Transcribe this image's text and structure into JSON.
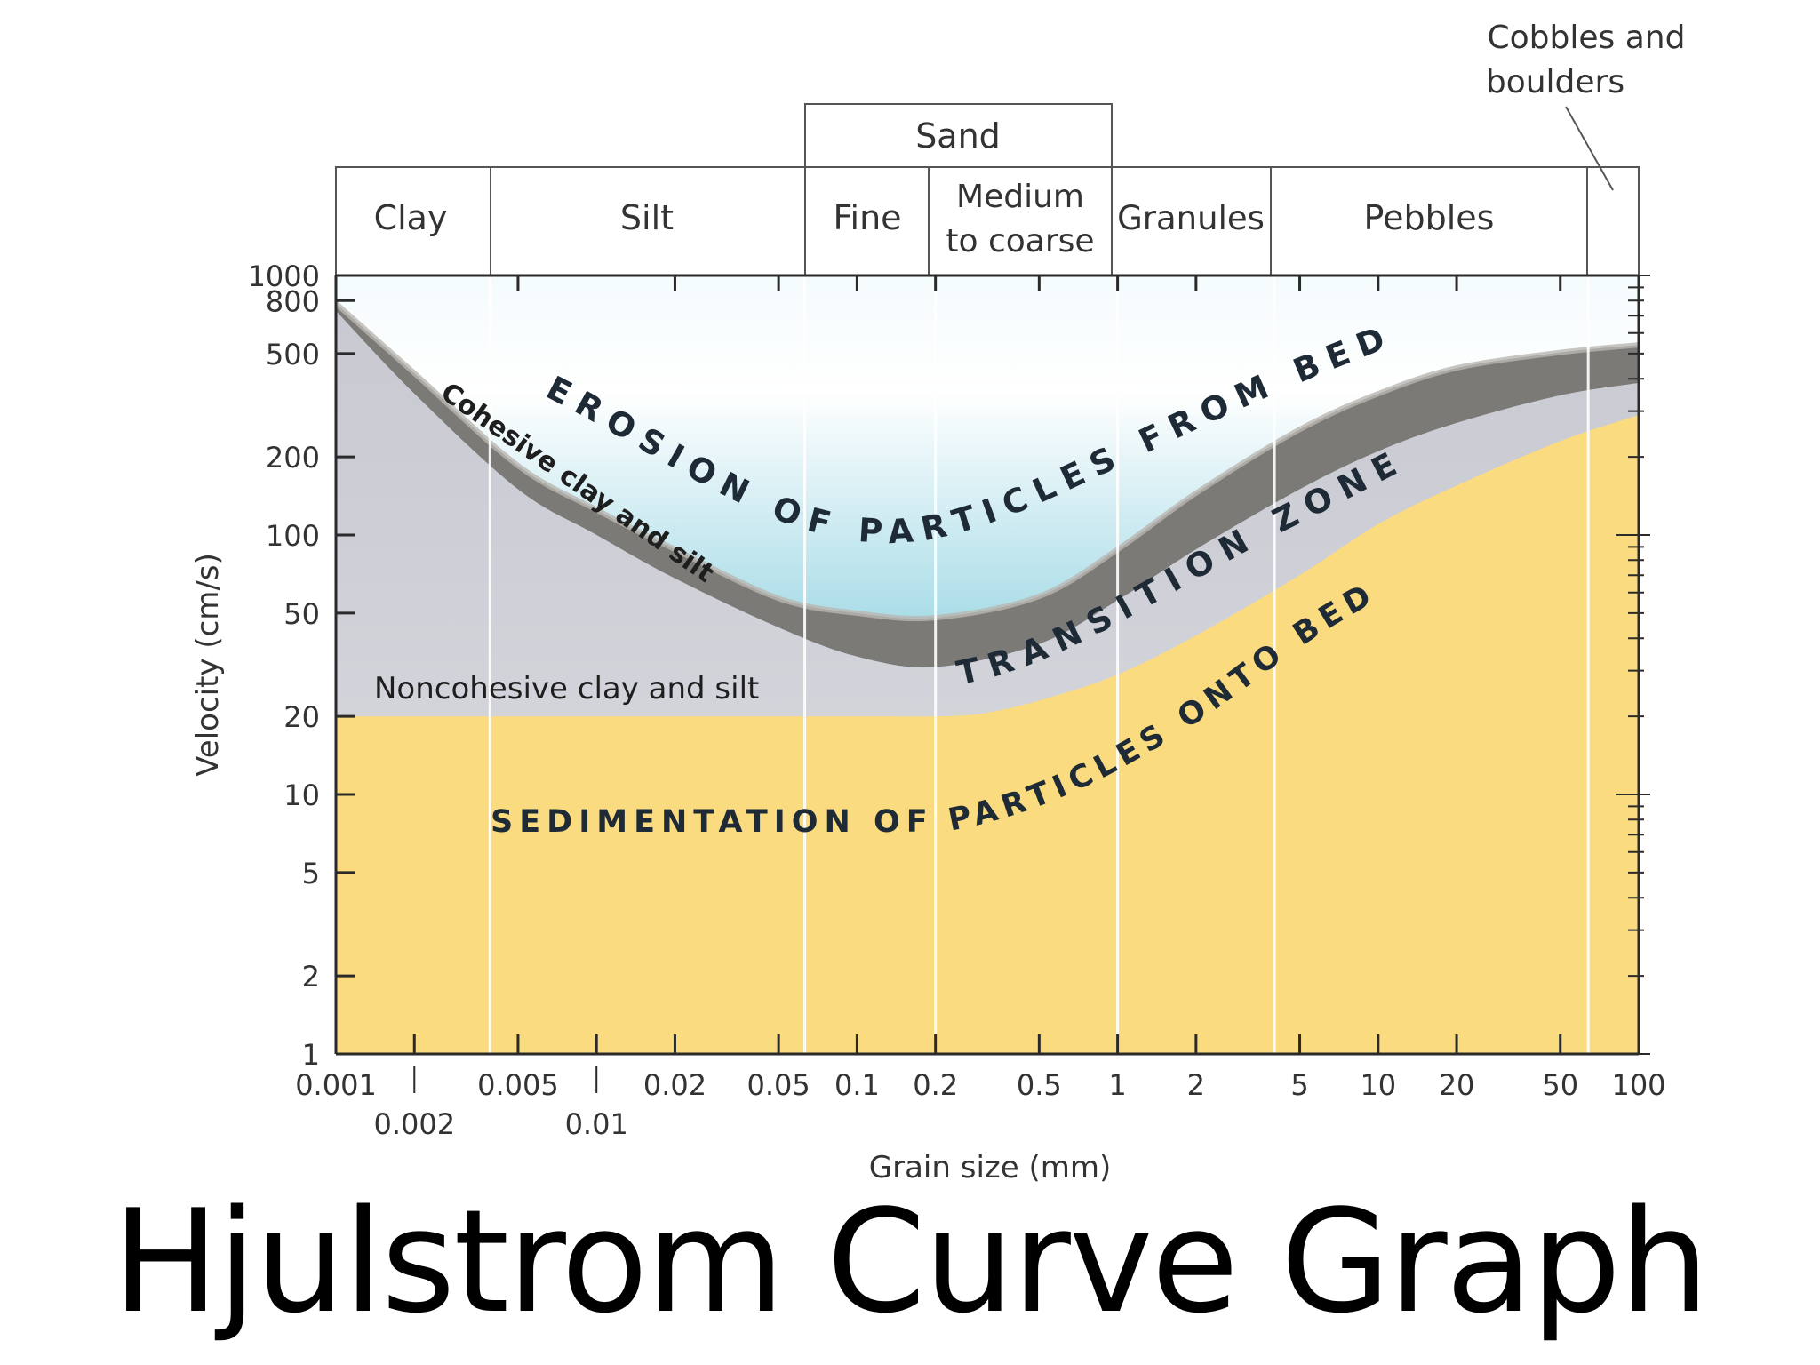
{
  "page": {
    "title": "Hjulstrom Curve Graph"
  },
  "chart_data": {
    "type": "area",
    "xlabel": "Grain size (mm)",
    "ylabel": "Velocity (cm/s)",
    "xscale": "log",
    "yscale": "log",
    "xlim": [
      0.001,
      100
    ],
    "ylim": [
      1,
      1000
    ],
    "x_ticks_primary": [
      {
        "value": 0.001,
        "label": "0.001"
      },
      {
        "value": 0.005,
        "label": "0.005"
      },
      {
        "value": 0.02,
        "label": "0.02"
      },
      {
        "value": 0.05,
        "label": "0.05"
      },
      {
        "value": 0.1,
        "label": "0.1"
      },
      {
        "value": 0.2,
        "label": "0.2"
      },
      {
        "value": 0.5,
        "label": "0.5"
      },
      {
        "value": 1,
        "label": "1"
      },
      {
        "value": 2,
        "label": "2"
      },
      {
        "value": 5,
        "label": "5"
      },
      {
        "value": 10,
        "label": "10"
      },
      {
        "value": 20,
        "label": "20"
      },
      {
        "value": 50,
        "label": "50"
      },
      {
        "value": 100,
        "label": "100"
      }
    ],
    "x_ticks_secondary": [
      {
        "value": 0.002,
        "label": "0.002"
      },
      {
        "value": 0.01,
        "label": "0.01"
      }
    ],
    "y_ticks": [
      {
        "value": 1000,
        "label": "1000"
      },
      {
        "value": 800,
        "label": "800"
      },
      {
        "value": 500,
        "label": "500"
      },
      {
        "value": 200,
        "label": "200"
      },
      {
        "value": 100,
        "label": "100"
      },
      {
        "value": 50,
        "label": "50"
      },
      {
        "value": 20,
        "label": "20"
      },
      {
        "value": 10,
        "label": "10"
      },
      {
        "value": 5,
        "label": "5"
      },
      {
        "value": 2,
        "label": "2"
      },
      {
        "value": 1,
        "label": "1"
      }
    ],
    "size_classes": [
      {
        "name": "Clay",
        "from": 0.001,
        "to": 0.0039
      },
      {
        "name": "Silt",
        "from": 0.0039,
        "to": 0.063
      },
      {
        "name": "Fine",
        "from": 0.063,
        "to": 0.2
      },
      {
        "name": "Medium to coarse",
        "from": 0.2,
        "to": 1
      },
      {
        "name": "Granules",
        "from": 1,
        "to": 4
      },
      {
        "name": "Pebbles",
        "from": 4,
        "to": 64
      },
      {
        "name": "Cobbles and boulders",
        "from": 64,
        "to": 100
      }
    ],
    "sand_group": {
      "name": "Sand",
      "from": 0.063,
      "to": 1
    },
    "header_labels": {
      "clay": "Clay",
      "silt": "Silt",
      "fine": "Fine",
      "medium_1": "Medium",
      "medium_2": "to coarse",
      "granules": "Granules",
      "pebbles": "Pebbles",
      "sand": "Sand",
      "cobbles_1": "Cobbles and",
      "cobbles_2": "boulders"
    },
    "series": [
      {
        "name": "Erosion curve (upper)",
        "points": [
          [
            0.001,
            780
          ],
          [
            0.002,
            420
          ],
          [
            0.005,
            185
          ],
          [
            0.01,
            125
          ],
          [
            0.02,
            88
          ],
          [
            0.05,
            57
          ],
          [
            0.1,
            50
          ],
          [
            0.2,
            48
          ],
          [
            0.5,
            58
          ],
          [
            1,
            88
          ],
          [
            2,
            145
          ],
          [
            5,
            255
          ],
          [
            10,
            350
          ],
          [
            20,
            440
          ],
          [
            50,
            505
          ],
          [
            100,
            540
          ]
        ]
      },
      {
        "name": "Erosion curve (lower)",
        "points": [
          [
            0.001,
            730
          ],
          [
            0.002,
            350
          ],
          [
            0.005,
            150
          ],
          [
            0.01,
            100
          ],
          [
            0.02,
            68
          ],
          [
            0.05,
            44
          ],
          [
            0.1,
            34
          ],
          [
            0.2,
            31
          ],
          [
            0.5,
            38
          ],
          [
            1,
            56
          ],
          [
            2,
            88
          ],
          [
            5,
            150
          ],
          [
            10,
            210
          ],
          [
            20,
            270
          ],
          [
            50,
            345
          ],
          [
            100,
            385
          ]
        ]
      },
      {
        "name": "Settling velocity curve",
        "points": [
          [
            0.001,
            20
          ],
          [
            0.01,
            20
          ],
          [
            0.1,
            20
          ],
          [
            0.2,
            20
          ],
          [
            0.3,
            20.5
          ],
          [
            0.5,
            23
          ],
          [
            1,
            29
          ],
          [
            2,
            41
          ],
          [
            5,
            70
          ],
          [
            10,
            110
          ],
          [
            20,
            155
          ],
          [
            50,
            230
          ],
          [
            100,
            290
          ]
        ]
      }
    ],
    "regions": {
      "erosion": "EROSION OF PARTICLES FROM BED",
      "transition": "TRANSITION ZONE",
      "sedimentation": "SEDIMENTATION OF PARTICLES ONTO BED",
      "cohesive": "Cohesive clay and silt",
      "noncohesive": "Noncohesive clay and silt"
    },
    "colors": {
      "erosion_water": "#5dbfd3",
      "erosion_top": "#f4fbfd",
      "band_dark": "#7c7a76",
      "band_light": "#e7e6e3",
      "transition_fill": "#d4d5dc",
      "sedimentation_fill": "#fbdb7f",
      "divider": "#ffffff",
      "axis": "#2a2a2a"
    },
    "grid": false,
    "legend": "none"
  }
}
